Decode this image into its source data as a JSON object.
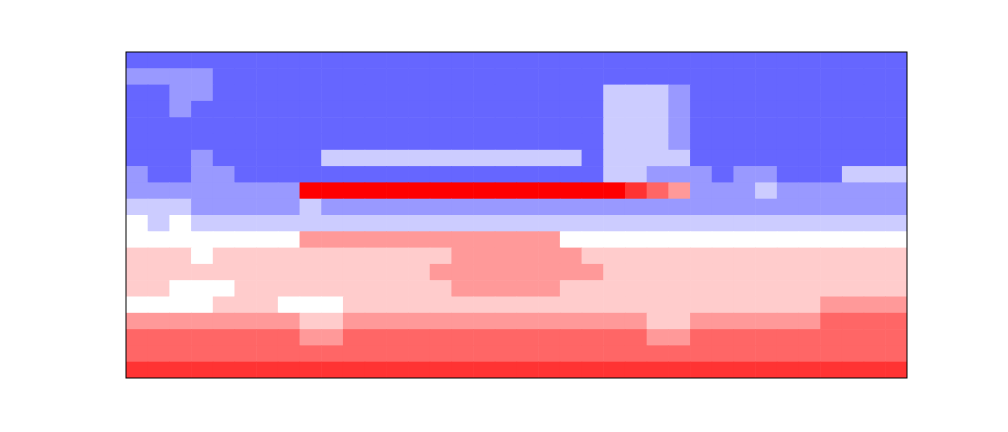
{
  "chart_data": {
    "type": "heatmap",
    "tick_labels": false,
    "color_range": [
      -5,
      5
    ],
    "cells": [
      [
        -3,
        -3,
        -3,
        -3,
        -3,
        -3,
        -3,
        -3,
        -3,
        -3,
        -3,
        -3,
        -3,
        -3,
        -3,
        -3,
        -3,
        -3,
        -3,
        -3,
        -3,
        -3,
        -3,
        -3,
        -3,
        -3,
        -3,
        -3,
        -3,
        -3,
        -3,
        -3,
        -3,
        -3,
        -3,
        -3
      ],
      [
        -2,
        -2,
        -2,
        -2,
        -3,
        -3,
        -3,
        -3,
        -3,
        -3,
        -3,
        -3,
        -3,
        -3,
        -3,
        -3,
        -3,
        -3,
        -3,
        -3,
        -3,
        -3,
        -3,
        -3,
        -3,
        -3,
        -3,
        -3,
        -3,
        -3,
        -3,
        -3,
        -3,
        -3,
        -3,
        -3
      ],
      [
        -3,
        -3,
        -2,
        -2,
        -3,
        -3,
        -3,
        -3,
        -3,
        -3,
        -3,
        -3,
        -3,
        -3,
        -3,
        -3,
        -3,
        -3,
        -3,
        -3,
        -3,
        -3,
        -1,
        -1,
        -1,
        -2,
        -3,
        -3,
        -3,
        -3,
        -3,
        -3,
        -3,
        -3,
        -3,
        -3
      ],
      [
        -3,
        -3,
        -2,
        -3,
        -3,
        -3,
        -3,
        -3,
        -3,
        -3,
        -3,
        -3,
        -3,
        -3,
        -3,
        -3,
        -3,
        -3,
        -3,
        -3,
        -3,
        -3,
        -1,
        -1,
        -1,
        -2,
        -3,
        -3,
        -3,
        -3,
        -3,
        -3,
        -3,
        -3,
        -3,
        -3
      ],
      [
        -3,
        -3,
        -3,
        -3,
        -3,
        -3,
        -3,
        -3,
        -3,
        -3,
        -3,
        -3,
        -3,
        -3,
        -3,
        -3,
        -3,
        -3,
        -3,
        -3,
        -3,
        -3,
        -1,
        -1,
        -1,
        -2,
        -3,
        -3,
        -3,
        -3,
        -3,
        -3,
        -3,
        -3,
        -3,
        -3
      ],
      [
        -3,
        -3,
        -3,
        -3,
        -3,
        -3,
        -3,
        -3,
        -3,
        -3,
        -3,
        -3,
        -3,
        -3,
        -3,
        -3,
        -3,
        -3,
        -3,
        -3,
        -3,
        -3,
        -1,
        -1,
        -1,
        -2,
        -3,
        -3,
        -3,
        -3,
        -3,
        -3,
        -3,
        -3,
        -3,
        -3
      ],
      [
        -3,
        -3,
        -3,
        -2,
        -3,
        -3,
        -3,
        -3,
        -3,
        -1,
        -1,
        -1,
        -1,
        -1,
        -1,
        -1,
        -1,
        -1,
        -1,
        -1,
        -1,
        -3,
        -1,
        -1,
        -1,
        -1,
        -3,
        -3,
        -3,
        -3,
        -3,
        -3,
        -3,
        -3,
        -3,
        -3
      ],
      [
        -2,
        -3,
        -3,
        -2,
        -2,
        -3,
        -3,
        -3,
        -3,
        -3,
        -3,
        -3,
        -3,
        -3,
        -3,
        -3,
        -3,
        -3,
        -3,
        -3,
        -3,
        -3,
        -1,
        -1,
        -2,
        -2,
        -2,
        -3,
        -2,
        -2,
        -3,
        -3,
        -3,
        -1,
        -1,
        -1
      ],
      [
        -2,
        -2,
        -2,
        -2,
        -2,
        -2,
        -2,
        -2,
        5,
        5,
        5,
        5,
        5,
        5,
        5,
        5,
        5,
        5,
        5,
        5,
        5,
        5,
        5,
        4,
        3,
        2,
        -2,
        -2,
        -2,
        -1,
        -2,
        -2,
        -2,
        -2,
        -2,
        -2
      ],
      [
        -1,
        -1,
        -1,
        -2,
        -2,
        -2,
        -2,
        -2,
        -1,
        -2,
        -2,
        -2,
        -2,
        -2,
        -2,
        -2,
        -2,
        -2,
        -2,
        -2,
        -2,
        -2,
        -2,
        -2,
        -2,
        -2,
        -2,
        -2,
        -2,
        -2,
        -2,
        -2,
        -2,
        -2,
        -2,
        -2
      ],
      [
        0,
        -1,
        0,
        -1,
        -1,
        -1,
        -1,
        -1,
        -1,
        -1,
        -1,
        -1,
        -1,
        -1,
        -1,
        -1,
        -1,
        -1,
        -1,
        -1,
        -1,
        -1,
        -1,
        -1,
        -1,
        -1,
        -1,
        -1,
        -1,
        -1,
        -1,
        -1,
        -1,
        -1,
        -1,
        -1
      ],
      [
        0,
        0,
        0,
        0,
        0,
        0,
        0,
        0,
        2,
        2,
        2,
        2,
        2,
        2,
        2,
        2,
        2,
        2,
        2,
        2,
        0,
        0,
        0,
        0,
        0,
        0,
        0,
        0,
        0,
        0,
        0,
        0,
        0,
        0,
        0,
        0
      ],
      [
        1,
        1,
        1,
        0,
        1,
        1,
        1,
        1,
        1,
        1,
        1,
        1,
        1,
        1,
        1,
        2,
        2,
        2,
        2,
        2,
        2,
        1,
        1,
        1,
        1,
        1,
        1,
        1,
        1,
        1,
        1,
        1,
        1,
        1,
        1,
        1
      ],
      [
        1,
        1,
        1,
        1,
        1,
        1,
        1,
        1,
        1,
        1,
        1,
        1,
        1,
        1,
        2,
        2,
        2,
        2,
        2,
        2,
        2,
        2,
        1,
        1,
        1,
        1,
        1,
        1,
        1,
        1,
        1,
        1,
        1,
        1,
        1,
        1
      ],
      [
        1,
        1,
        0,
        0,
        0,
        1,
        1,
        1,
        1,
        1,
        1,
        1,
        1,
        1,
        1,
        2,
        2,
        2,
        2,
        2,
        1,
        1,
        1,
        1,
        1,
        1,
        1,
        1,
        1,
        1,
        1,
        1,
        1,
        1,
        1,
        1
      ],
      [
        0,
        0,
        0,
        0,
        1,
        1,
        1,
        0,
        0,
        0,
        1,
        1,
        1,
        1,
        1,
        1,
        1,
        1,
        1,
        1,
        1,
        1,
        1,
        1,
        1,
        1,
        1,
        1,
        1,
        1,
        1,
        1,
        2,
        2,
        2,
        2
      ],
      [
        2,
        2,
        2,
        2,
        2,
        2,
        2,
        2,
        1,
        1,
        2,
        2,
        2,
        2,
        2,
        2,
        2,
        2,
        2,
        2,
        2,
        2,
        2,
        2,
        1,
        1,
        2,
        2,
        2,
        2,
        2,
        2,
        3,
        3,
        3,
        3
      ],
      [
        3,
        3,
        3,
        3,
        3,
        3,
        3,
        3,
        2,
        2,
        3,
        3,
        3,
        3,
        3,
        3,
        3,
        3,
        3,
        3,
        3,
        3,
        3,
        3,
        2,
        2,
        3,
        3,
        3,
        3,
        3,
        3,
        3,
        3,
        3,
        3
      ],
      [
        3,
        3,
        3,
        3,
        3,
        3,
        3,
        3,
        3,
        3,
        3,
        3,
        3,
        3,
        3,
        3,
        3,
        3,
        3,
        3,
        3,
        3,
        3,
        3,
        3,
        3,
        3,
        3,
        3,
        3,
        3,
        3,
        3,
        3,
        3,
        3
      ],
      [
        4,
        4,
        4,
        4,
        4,
        4,
        4,
        4,
        4,
        4,
        4,
        4,
        4,
        4,
        4,
        4,
        4,
        4,
        4,
        4,
        4,
        4,
        4,
        4,
        4,
        4,
        4,
        4,
        4,
        4,
        4,
        4,
        4,
        4,
        4,
        4
      ]
    ]
  }
}
